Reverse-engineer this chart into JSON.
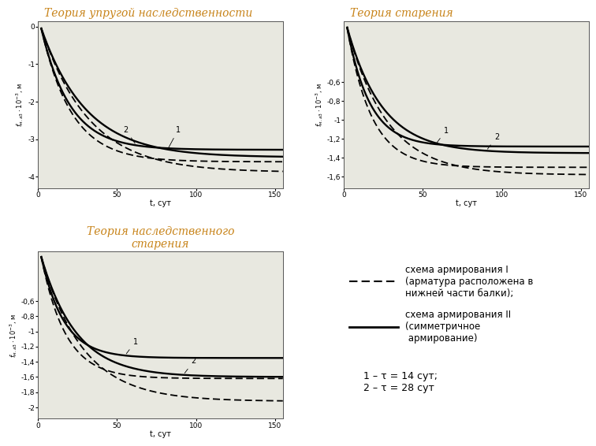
{
  "title1": "Теория упругой наследственности",
  "title2": "Теория старения",
  "title3": "Теория наследственного\nстарения",
  "title_color": "#c8841a",
  "title_fontsize": 10,
  "legend_line1": "схема армирования I\n(арматура расположена в\nнижней части балки);",
  "legend_line2": "схема армирования II\n(симметричное\n армирование)",
  "legend_tau": "1 – τ = 14 сут;\n2 – τ = 28 сут",
  "xlabel": "t, сут",
  "plot1": {
    "ylim": [
      -4.3,
      0.15
    ],
    "yticks": [
      0,
      -1,
      -2,
      -3,
      -4
    ],
    "ytick_labels": [
      "0",
      "-1",
      "-2",
      "-3",
      "-4"
    ],
    "xlim": [
      0,
      155
    ],
    "xticks": [
      0,
      50,
      100,
      150
    ],
    "bg_color": "#e8e8e0"
  },
  "plot2": {
    "ylim": [
      -1.72,
      0.05
    ],
    "yticks": [
      -0.6,
      -0.8,
      -1.0,
      -1.2,
      -1.4,
      -1.6
    ],
    "ytick_labels": [
      "-0,6",
      "-0,8",
      "-1",
      "-1,2",
      "-1,4",
      "-1,6"
    ],
    "xlim": [
      0,
      155
    ],
    "xticks": [
      0,
      50,
      100,
      150
    ],
    "bg_color": "#e8e8e0"
  },
  "plot3": {
    "ylim": [
      -2.15,
      0.05
    ],
    "yticks": [
      -0.6,
      -0.8,
      -1.0,
      -1.2,
      -1.4,
      -1.6,
      -1.8,
      -2.0
    ],
    "ytick_labels": [
      "-0,6",
      "-0,8",
      "-1",
      "-1,2",
      "-1,4",
      "-1,6",
      "-1,8",
      "-2"
    ],
    "xlim": [
      0,
      155
    ],
    "xticks": [
      0,
      50,
      100,
      150
    ],
    "bg_color": "#e8e8e0"
  }
}
